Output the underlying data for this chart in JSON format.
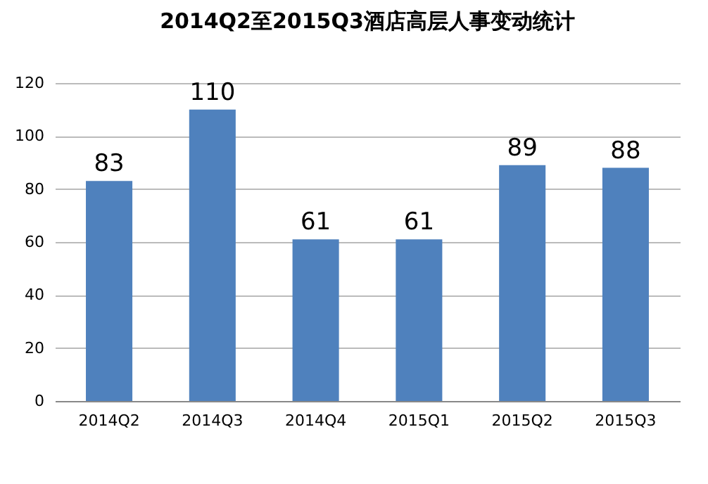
{
  "chart_data": {
    "type": "bar",
    "title": "2014Q2至2015Q3酒店高层人事变动统计",
    "categories": [
      "2014Q2",
      "2014Q3",
      "2014Q4",
      "2015Q1",
      "2015Q2",
      "2015Q3"
    ],
    "values": [
      83,
      110,
      61,
      61,
      89,
      88
    ],
    "color": "#4f81bd",
    "ylim": [
      0,
      120
    ],
    "yticks": [
      0,
      20,
      40,
      60,
      80,
      100,
      120
    ],
    "grid": "y",
    "data_labels": true
  }
}
